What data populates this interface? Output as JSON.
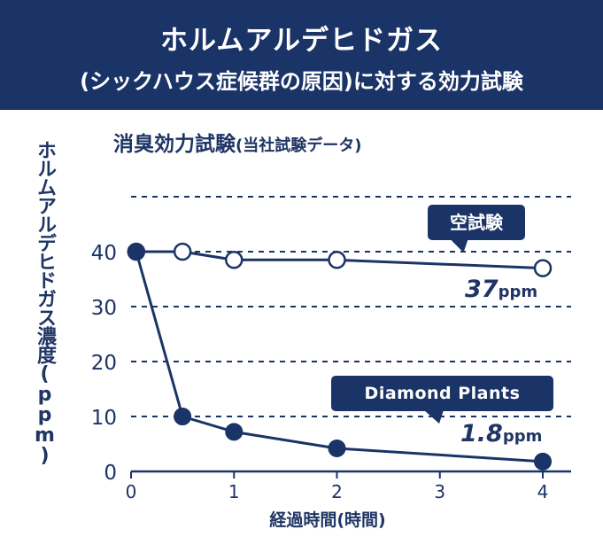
{
  "banner": {
    "title": "ホルムアルデヒドガス",
    "subtitle": "(シックハウス症候群の原因)に対する効力試験"
  },
  "colors": {
    "navy": "#1b3467",
    "text": "#1f3564",
    "background": "#ffffff"
  },
  "chart_data": {
    "type": "line",
    "title": "消臭効力試験",
    "subtitle": "(当社試験データ)",
    "xlabel": "経過時間(時間)",
    "ylabel": "ホルムアルデヒドガス濃度",
    "ylabel_unit": "(ppm)",
    "xlim": [
      0,
      4
    ],
    "ylim": [
      0,
      50
    ],
    "xticks": [
      0,
      1,
      2,
      3,
      4
    ],
    "yticks": [
      0,
      10,
      20,
      30,
      40
    ],
    "grid": "horizontal-dashed",
    "series": [
      {
        "name": "空試験",
        "marker": "open-circle",
        "x": [
          0.05,
          0.5,
          1,
          2,
          4
        ],
        "y": [
          40,
          40,
          38.5,
          38.5,
          37
        ],
        "end_value": "37",
        "end_unit": "ppm"
      },
      {
        "name": "Diamond Plants",
        "marker": "filled-circle",
        "x": [
          0.05,
          0.5,
          1,
          2,
          4
        ],
        "y": [
          40,
          10,
          7.2,
          4.2,
          1.8
        ],
        "end_value": "1.8",
        "end_unit": "ppm"
      }
    ]
  }
}
